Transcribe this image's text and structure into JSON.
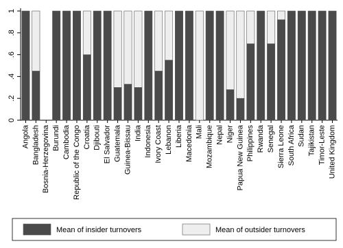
{
  "chart_data": {
    "type": "stacked_bar",
    "categories": [
      "Angola",
      "Bangladesh",
      "Bosnia-Herzegovina",
      "Burundi",
      "Cambodia",
      "Republic of the Congo",
      "Croatia",
      "Djibouti",
      "El Salvador",
      "Guatemala",
      "Guinea-Bissau",
      "India",
      "Indonesia",
      "Ivory Coast",
      "Lebanon",
      "Liberia",
      "Macedonia",
      "Mali",
      "Mozambique",
      "Nepal",
      "Niger",
      "Papua New Guinea",
      "Philippines",
      "Rwanda",
      "Senegal",
      "Sierra Leone",
      "South Africa",
      "Sudan",
      "Tajikistan",
      "Timor-Leste",
      "United Kingdom"
    ],
    "series": [
      {
        "name": "Mean of insider turnovers",
        "color": "#4a4a4a",
        "values": [
          1,
          0.45,
          0,
          1,
          1,
          1,
          0.6,
          1,
          1,
          0.3,
          0.33,
          0.3,
          1,
          0.45,
          0.55,
          1,
          1,
          0,
          1,
          1,
          0.28,
          0.2,
          0.7,
          1,
          0.7,
          0.92,
          1,
          1,
          1,
          1,
          1
        ]
      },
      {
        "name": "Mean of outsider turnovers",
        "color": "#eeeeee",
        "values": [
          0,
          0.55,
          0,
          0,
          0,
          0,
          0.4,
          0,
          0,
          0.7,
          0.67,
          0.7,
          0,
          0.55,
          0.45,
          0,
          0,
          1,
          0,
          0,
          0.72,
          0.8,
          0.3,
          0,
          0.3,
          0.08,
          0,
          0,
          0,
          0,
          0
        ]
      }
    ],
    "ylim": [
      0,
      1
    ],
    "yticks": [
      0,
      {
        "value": 0.2,
        "label": ".2"
      },
      {
        "value": 0.4,
        "label": ".4"
      },
      {
        "value": 0.6,
        "label": ".6"
      },
      {
        "value": 0.8,
        "label": ".8"
      },
      1
    ],
    "legend": "bottom"
  }
}
